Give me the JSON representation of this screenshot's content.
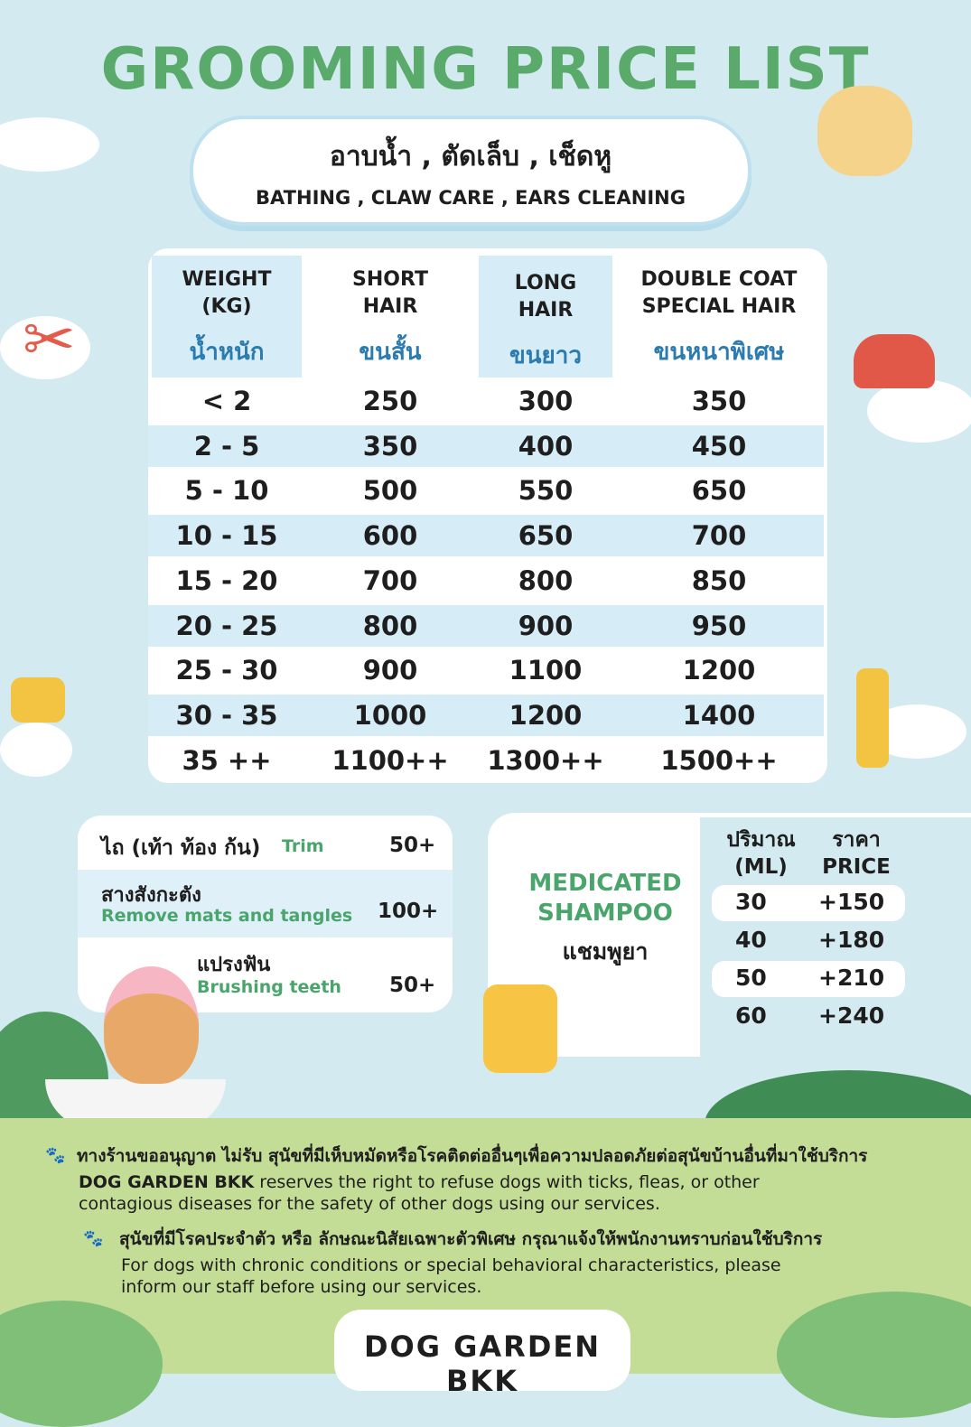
{
  "title": "GROOMING  PRICE LIST",
  "services": {
    "thai": "อาบน้ำ , ตัดเล็บ , เช็ดหู",
    "english": "BATHING , CLAW CARE , EARS CLEANING"
  },
  "price_table": {
    "headers": [
      {
        "en": "WEIGHT\n(KG)",
        "th": "น้ำหนัก"
      },
      {
        "en": "SHORT\nHAIR",
        "th": "ขนสั้น"
      },
      {
        "en": "LONG\nHAIR",
        "th": "ขนยาว"
      },
      {
        "en": "DOUBLE COAT\nSPECIAL HAIR",
        "th": "ขนหนาพิเศษ"
      }
    ],
    "rows": [
      [
        "< 2",
        "250",
        "300",
        "350"
      ],
      [
        "2   -  5",
        "350",
        "400",
        "450"
      ],
      [
        "5   -  10",
        "500",
        "550",
        "650"
      ],
      [
        "10  -  15",
        "600",
        "650",
        "700"
      ],
      [
        "15  -  20",
        "700",
        "800",
        "850"
      ],
      [
        "20 -  25",
        "800",
        "900",
        "950"
      ],
      [
        "25 -  30",
        "900",
        "1100",
        "1200"
      ],
      [
        "30 -  35",
        "1000",
        "1200",
        "1400"
      ],
      [
        "35 ++",
        "1100++",
        "1300++",
        "1500++"
      ]
    ]
  },
  "extras": [
    {
      "th": "ไถ (เท้า ท้อง ก้น)",
      "en": "Trim",
      "price": "50+"
    },
    {
      "th": "สางสังกะตัง",
      "en": "Remove mats and tangles",
      "price": "100+"
    },
    {
      "th": "แปรงฟัน",
      "en": "Brushing teeth",
      "price": "50+"
    }
  ],
  "shampoo": {
    "title_en": "MEDICATED\nSHAMPOO",
    "title_th": "แชมพูยา",
    "col_volume": "ปริมาณ\n(ML)",
    "col_price": "ราคา\nPRICE",
    "rows": [
      [
        "30",
        "+150"
      ],
      [
        "40",
        "+180"
      ],
      [
        "50",
        "+210"
      ],
      [
        "60",
        "+240"
      ]
    ]
  },
  "notes": [
    {
      "th": "ทางร้านขออนุญาต ไม่รับ สุนัขที่มีเห็บหมัดหรือโรคติดต่ออื่นๆเพื่อความปลอดภัยต่อสุนัขบ้านอื่นที่มาใช้บริการ",
      "en_strong": "DOG GARDEN BKK",
      "en": " reserves the right to refuse dogs with ticks, fleas, or other contagious diseases for the safety of other dogs using our services."
    },
    {
      "th": "สุนัขที่มีโรคประจำตัว หรือ ลักษณะนิสัยเฉพาะตัวพิเศษ กรุณาแจ้งให้พนักงานทราบก่อนใช้บริการ",
      "en": "For dogs with chronic conditions or special behavioral characteristics, please inform our staff before using our services."
    }
  ],
  "brand": "DOG GARDEN BKK",
  "colors": {
    "background": "#d3eaf0",
    "title": "#5aaa6b",
    "header": "#d6ecf6",
    "ground": "#c4dd96"
  }
}
